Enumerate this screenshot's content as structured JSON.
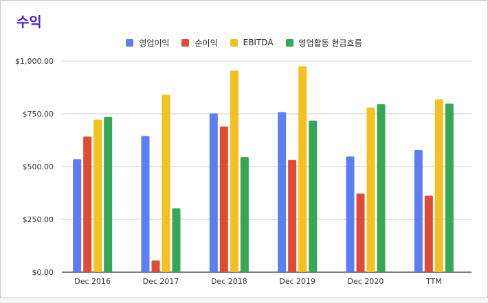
{
  "chart_data": {
    "type": "bar",
    "title": "수익",
    "categories": [
      "Dec 2016",
      "Dec 2017",
      "Dec 2018",
      "Dec 2019",
      "Dec 2020",
      "TTM"
    ],
    "series": [
      {
        "name": "영업이익",
        "color": "#5b7ef0",
        "values": [
          535,
          645,
          752,
          758,
          548,
          578
        ]
      },
      {
        "name": "순이익",
        "color": "#e14b35",
        "values": [
          642,
          55,
          690,
          532,
          372,
          362
        ]
      },
      {
        "name": "EBITDA",
        "color": "#f4c022",
        "values": [
          722,
          840,
          955,
          975,
          780,
          818
        ]
      },
      {
        "name": "영업활동 현금흐름",
        "color": "#34a856",
        "values": [
          735,
          302,
          545,
          718,
          795,
          798
        ]
      }
    ],
    "ylim": [
      0,
      1000
    ],
    "yticks": [
      "$0.00",
      "$250.00",
      "$500.00",
      "$750.00",
      "$1,000.00"
    ],
    "ytick_values": [
      0,
      250,
      500,
      750,
      1000
    ],
    "grid": true,
    "legend": "top-center"
  }
}
